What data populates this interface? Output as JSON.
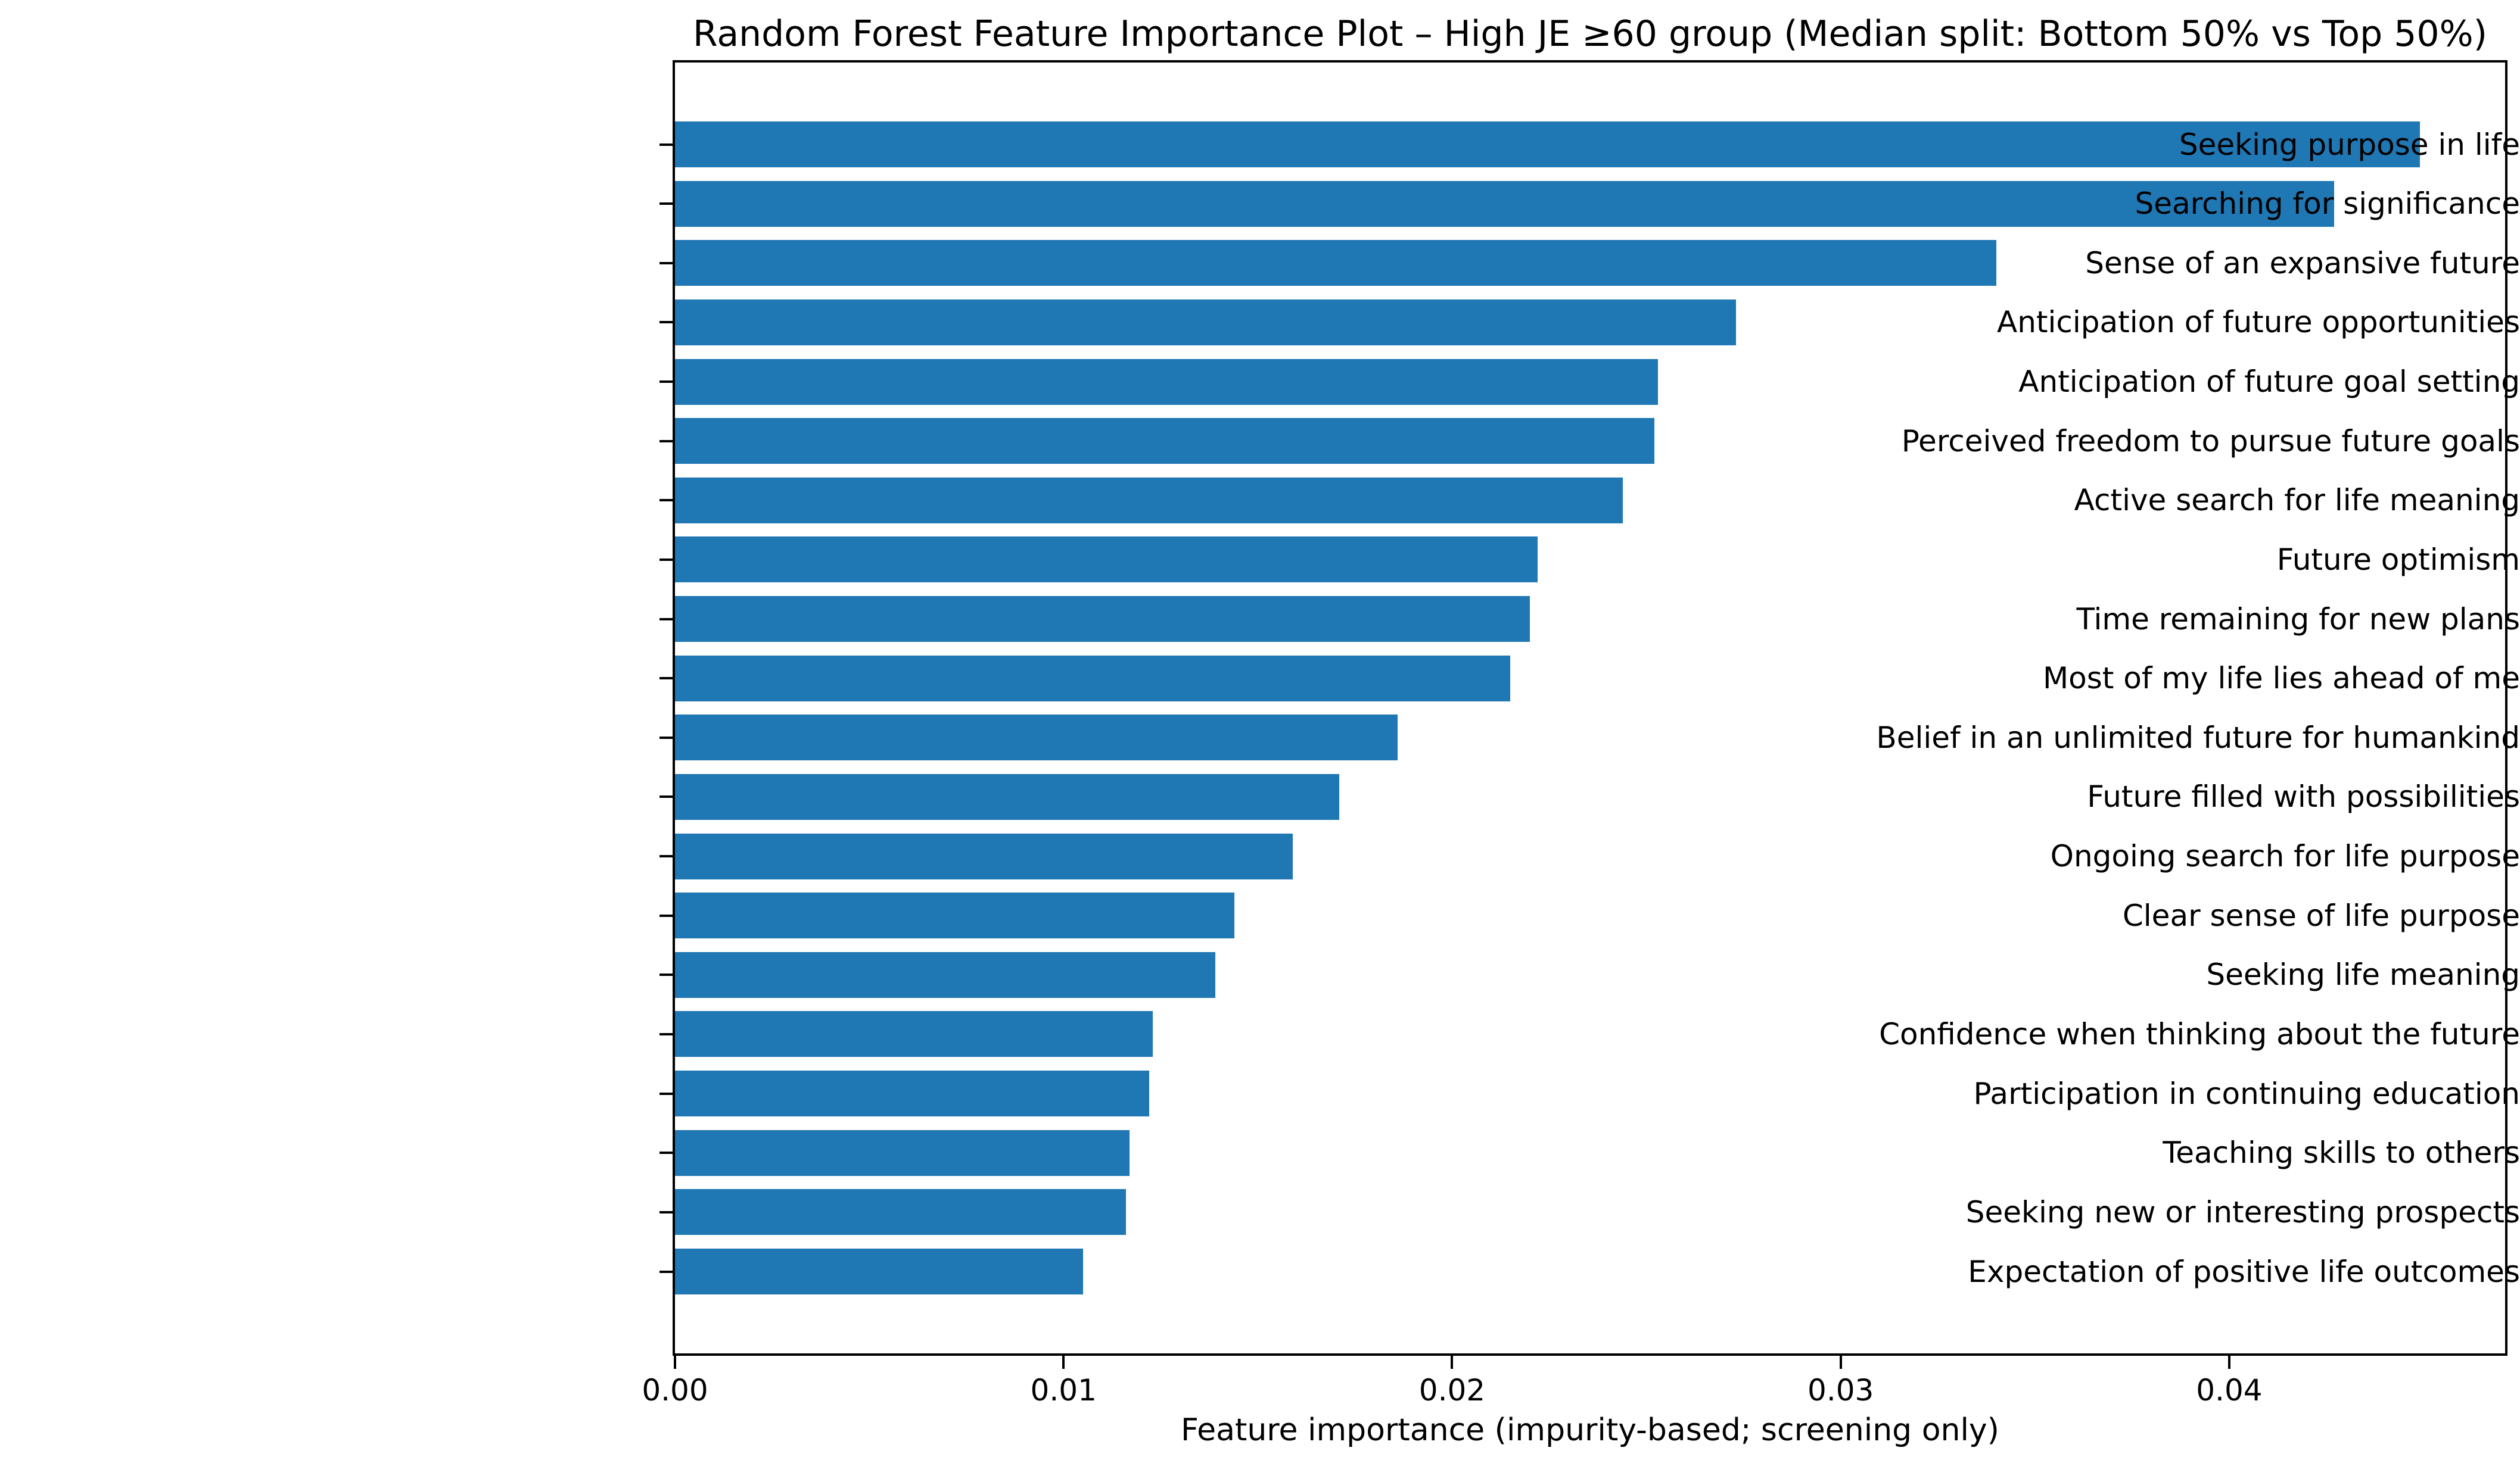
{
  "title": "Random Forest Feature Importance Plot – High JE ≥60 group (Median split: Bottom 50% vs Top 50%)",
  "chart_data": {
    "type": "bar",
    "orientation": "horizontal",
    "title": "Random Forest Feature Importance Plot – High JE ≥60 group (Median split: Bottom 50% vs Top 50%)",
    "xlabel": "Feature importance (impurity-based; screening only)",
    "ylabel": "",
    "categories": [
      "Seeking purpose in life",
      "Searching for significance",
      "Sense of an expansive future",
      "Anticipation of future opportunities",
      "Anticipation of future goal setting",
      "Perceived freedom to pursue future goals",
      "Active search for life meaning",
      "Future optimism",
      "Time remaining for new plans",
      "Most of my life lies ahead of me",
      "Belief in an unlimited future for humankind",
      "Future filled with possibilities",
      "Ongoing search for life purpose",
      "Clear sense of life purpose",
      "Seeking life meaning",
      "Confidence when thinking about the future",
      "Participation in continuing education",
      "Teaching skills to others",
      "Seeking new or interesting prospects",
      "Expectation of positive life outcomes"
    ],
    "values": [
      0.0449,
      0.0427,
      0.034,
      0.0273,
      0.0253,
      0.0252,
      0.0244,
      0.0222,
      0.022,
      0.0215,
      0.0186,
      0.0171,
      0.0159,
      0.0144,
      0.0139,
      0.0123,
      0.0122,
      0.0117,
      0.0116,
      0.0105
    ],
    "xlim": [
      0,
      0.0471
    ],
    "xticks": [
      0.0,
      0.01,
      0.02,
      0.03,
      0.04
    ],
    "xtick_labels": [
      "0.00",
      "0.01",
      "0.02",
      "0.03",
      "0.04"
    ],
    "bar_color": "#1f77b4",
    "grid": false,
    "legend": "none"
  }
}
